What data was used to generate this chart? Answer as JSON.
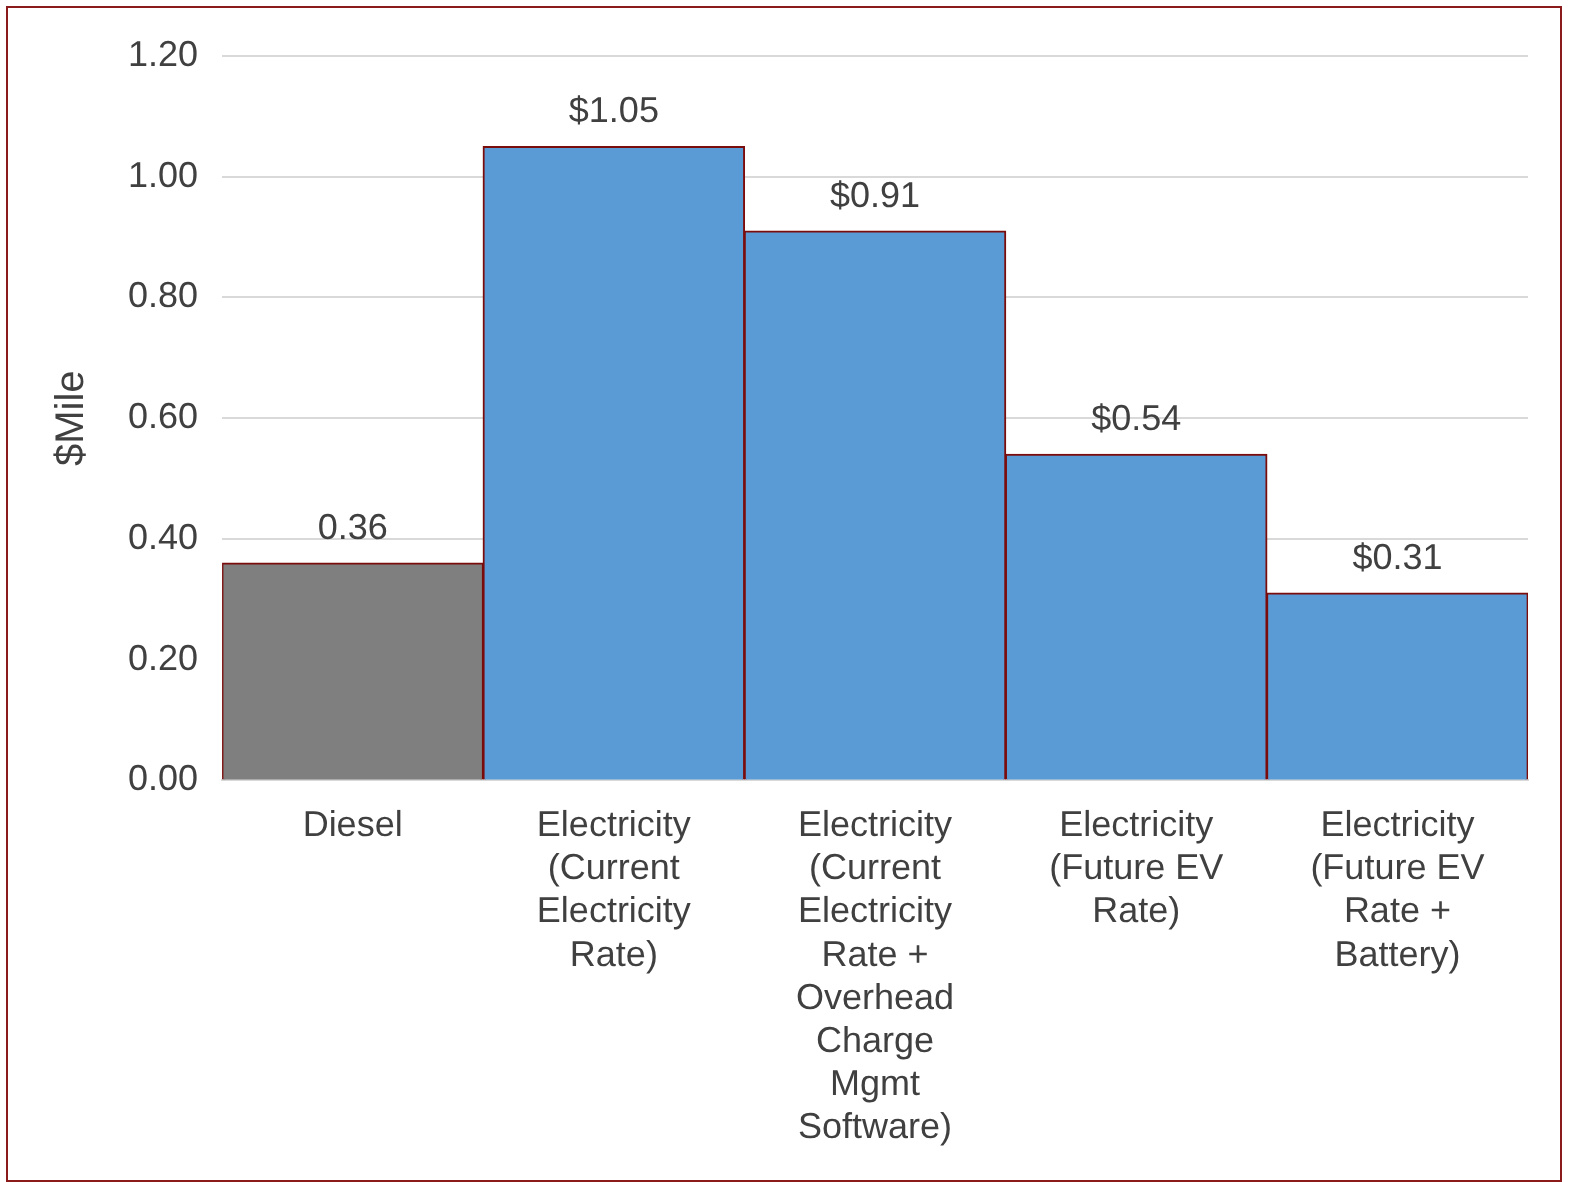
{
  "chart_data": {
    "type": "bar",
    "ylabel": "$Mile",
    "categories": [
      "Diesel",
      "Electricity (Current Electricity Rate)",
      "Electricity (Current Electricity Rate + Overhead Charge Mgmt Software)",
      "Electricity (Future EV Rate)",
      "Electricity (Future EV Rate + Battery)"
    ],
    "values": [
      0.36,
      1.05,
      0.91,
      0.54,
      0.31
    ],
    "colors": [
      "#7f7f7f",
      "#5b9bd5",
      "#5b9bd5",
      "#5b9bd5",
      "#5b9bd5"
    ],
    "value_labels": [
      "0.36",
      "$1.05",
      "$0.91",
      "$0.54",
      "$0.31"
    ],
    "ylim": [
      0,
      1.2
    ],
    "yticks": [
      {
        "value": 0,
        "label": "0.00"
      },
      {
        "value": 0.2,
        "label": "0.20"
      },
      {
        "value": 0.4,
        "label": "0.40"
      },
      {
        "value": 0.6,
        "label": "0.60"
      },
      {
        "value": 0.8,
        "label": "0.80"
      },
      {
        "value": 1,
        "label": "1.00"
      },
      {
        "value": 1.2,
        "label": "1.20"
      }
    ],
    "grid": "y",
    "legend": false
  }
}
